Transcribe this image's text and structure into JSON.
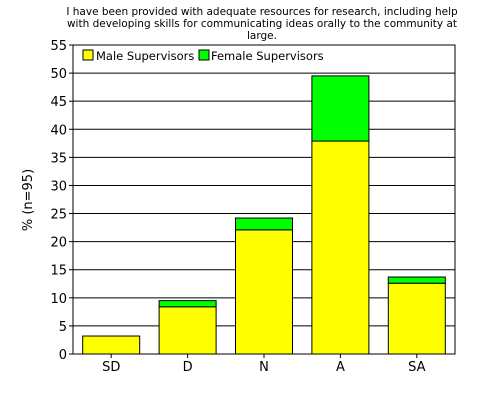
{
  "chart_data": {
    "type": "bar",
    "stacked": true,
    "title_lines": [
      "I have been provided with adequate resources for research, including help",
      "with developing skills for communicating ideas orally to the community at",
      "large."
    ],
    "xlabel": "",
    "ylabel": "% (n=95)",
    "ylim": [
      0,
      55
    ],
    "yticks": [
      0,
      5,
      10,
      15,
      20,
      25,
      30,
      35,
      40,
      45,
      50,
      55
    ],
    "grid": "horizontal",
    "legend_position": "top-left",
    "categories": [
      "SD",
      "D",
      "N",
      "A",
      "SA"
    ],
    "series": [
      {
        "name": "Male Supervisors",
        "color": "#ffff00",
        "values": [
          3.2,
          8.4,
          22.1,
          37.9,
          12.6
        ]
      },
      {
        "name": "Female Supervisors",
        "color": "#00ff00",
        "values": [
          0.0,
          1.1,
          2.1,
          11.6,
          1.1
        ]
      }
    ]
  }
}
